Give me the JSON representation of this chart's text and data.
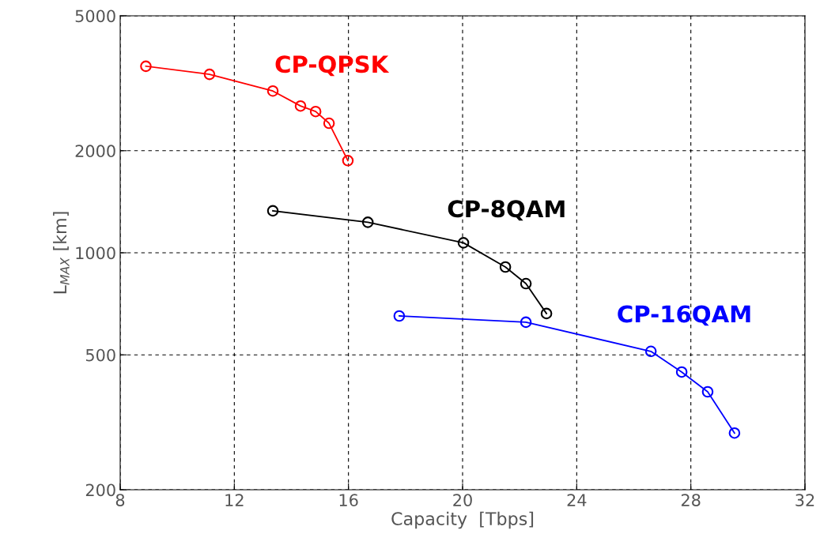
{
  "chart_data": {
    "type": "line",
    "xlabel": "Capacity  [Tbps]",
    "ylabel": "L$_{MAX}$ [km]",
    "log": "y",
    "grid": true,
    "marker": "circle",
    "line_style": "solid",
    "xlim": [
      8,
      32
    ],
    "xticks": [
      8,
      12,
      16,
      20,
      24,
      28,
      32
    ],
    "ylim": [
      200,
      5000
    ],
    "yticks": [
      200,
      500,
      1000,
      2000,
      5000
    ],
    "series": [
      {
        "name": "CP-QPSK",
        "color": "#ff0000",
        "x": [
          8.9,
          11.13,
          13.35,
          14.32,
          14.85,
          15.32,
          15.98
        ],
        "values": [
          3550,
          3360,
          3000,
          2710,
          2610,
          2410,
          1870
        ]
      },
      {
        "name": "CP-8QAM",
        "color": "#000000",
        "x": [
          13.35,
          16.68,
          20.03,
          21.5,
          22.22,
          22.94
        ],
        "values": [
          1330,
          1230,
          1070,
          908,
          811,
          662
        ]
      },
      {
        "name": "CP-16QAM",
        "color": "#0000ff",
        "x": [
          17.78,
          22.22,
          26.6,
          27.68,
          28.59,
          29.53
        ],
        "values": [
          651,
          624,
          512,
          445,
          389,
          294
        ]
      }
    ]
  }
}
